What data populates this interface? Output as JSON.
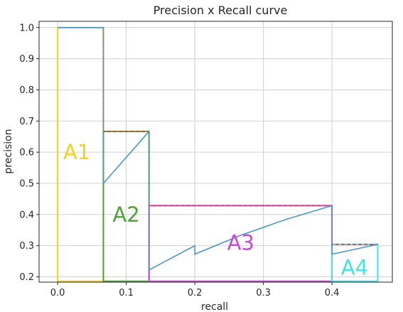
{
  "chart_data": {
    "type": "line",
    "title": "Precision x Recall curve",
    "xlabel": "recall",
    "ylabel": "precision",
    "xlim": [
      -0.027,
      0.488
    ],
    "ylim": [
      0.183,
      1.02
    ],
    "x_ticks": [
      0.0,
      0.1,
      0.2,
      0.3,
      0.4
    ],
    "x_tick_labels": [
      "0.0",
      "0.1",
      "0.2",
      "0.3",
      "0.4"
    ],
    "y_ticks": [
      0.2,
      0.3,
      0.4,
      0.5,
      0.6,
      0.7,
      0.8,
      0.9,
      1.0
    ],
    "y_tick_labels": [
      "0.2",
      "0.3",
      "0.4",
      "0.5",
      "0.6",
      "0.7",
      "0.8",
      "0.9",
      "1.0"
    ],
    "grid": true,
    "series": [
      {
        "color": "#4c98c9",
        "x": [
          0.0,
          0.0667,
          0.0667,
          0.1333,
          0.1333,
          0.2,
          0.2,
          0.2667,
          0.3333,
          0.4,
          0.4,
          0.4667
        ],
        "y": [
          1.0,
          1.0,
          0.5,
          0.6667,
          0.2222,
          0.3,
          0.2727,
          0.3333,
          0.3846,
          0.4286,
          0.2727,
          0.3043
        ]
      }
    ],
    "step_envelope": {
      "color": "#e33232",
      "x": [
        0.0,
        0.0667,
        0.0667,
        0.1333,
        0.1333,
        0.4,
        0.4,
        0.4667
      ],
      "y": [
        1.0,
        1.0,
        0.6667,
        0.6667,
        0.4286,
        0.4286,
        0.3043,
        0.3043
      ]
    },
    "regions": [
      {
        "label": "A1",
        "color": "#f2d31d",
        "x0": 0.0,
        "x1": 0.0667,
        "y0": 0.186,
        "y1": 1.0,
        "label_x": 0.028,
        "label_y": 0.6
      },
      {
        "label": "A2",
        "color": "#4ea23a",
        "x0": 0.0667,
        "x1": 0.1333,
        "y0": 0.186,
        "y1": 0.6667,
        "label_x": 0.1,
        "label_y": 0.4
      },
      {
        "label": "A3",
        "color": "#cc44dd",
        "x0": 0.1333,
        "x1": 0.4,
        "y0": 0.186,
        "y1": 0.4286,
        "label_x": 0.267,
        "label_y": 0.31
      },
      {
        "label": "A4",
        "color": "#3fe5e5",
        "x0": 0.4,
        "x1": 0.4667,
        "y0": 0.186,
        "y1": 0.3043,
        "label_x": 0.433,
        "label_y": 0.23
      }
    ]
  }
}
